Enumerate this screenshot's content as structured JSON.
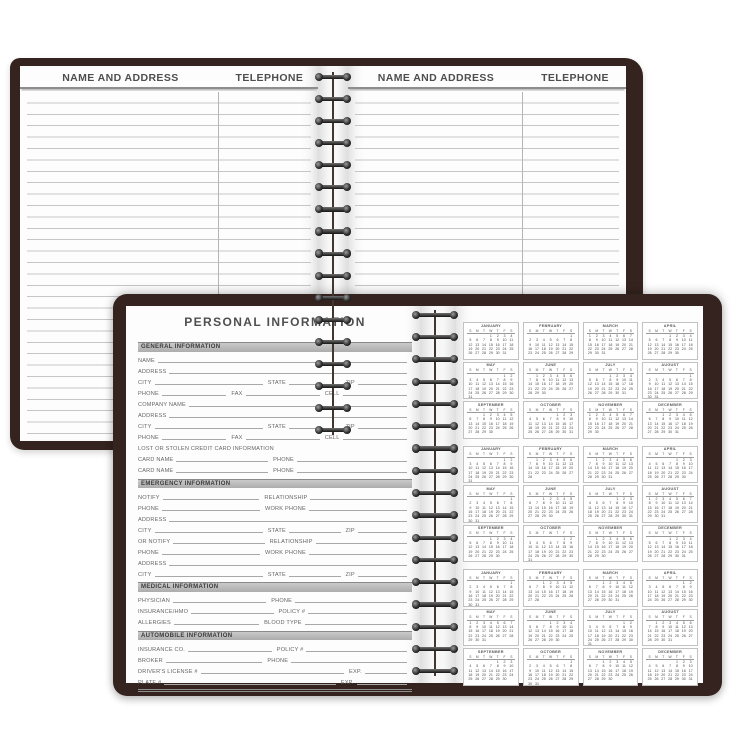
{
  "colors": {
    "cover": "#35231f",
    "page": "#fdfdfd",
    "rule": "#c6c6c6",
    "header-text": "#4e4e4e",
    "bar-text": "#3b3b3b",
    "label": "#666666",
    "line": "#a8a8a8",
    "cal-border": "#c2c2c2",
    "cal-text": "#4a4a4a"
  },
  "back_book": {
    "left_page": {
      "name_address_header": "NAME AND ADDRESS",
      "telephone_header": "TELEPHONE"
    },
    "right_page": {
      "name_address_header": "NAME AND ADDRESS",
      "telephone_header": "TELEPHONE"
    }
  },
  "front_book": {
    "left_page": {
      "title": "PERSONAL INFORMATION",
      "sections": [
        {
          "heading": "GENERAL INFORMATION",
          "rows": [
            [
              {
                "label": "NAME",
                "w": 1
              }
            ],
            [
              {
                "label": "ADDRESS",
                "w": 1
              }
            ],
            [
              {
                "label": "CITY",
                "w": 2.2
              },
              {
                "label": "STATE",
                "w": 1.05
              },
              {
                "label": "ZIP",
                "w": 1
              }
            ],
            [
              {
                "label": "PHONE",
                "w": 1
              },
              {
                "label": "FAX",
                "w": 1.15
              },
              {
                "label": "CELL",
                "w": 1
              }
            ],
            [
              {
                "label": "COMPANY NAME",
                "w": 1
              }
            ],
            [
              {
                "label": "ADDRESS",
                "w": 1
              }
            ],
            [
              {
                "label": "CITY",
                "w": 2.2
              },
              {
                "label": "STATE",
                "w": 1.05
              },
              {
                "label": "ZIP",
                "w": 1
              }
            ],
            [
              {
                "label": "PHONE",
                "w": 1
              },
              {
                "label": "FAX",
                "w": 1.15
              },
              {
                "label": "CELL",
                "w": 1
              }
            ],
            [
              {
                "label": "LOST OR STOLEN CREDIT CARD INFORMATION",
                "w": 0
              }
            ],
            [
              {
                "label": "CARD NAME",
                "w": 1
              },
              {
                "label": "PHONE",
                "w": 1.2
              }
            ],
            [
              {
                "label": "CARD NAME",
                "w": 1
              },
              {
                "label": "PHONE",
                "w": 1.2
              }
            ]
          ]
        },
        {
          "heading": "EMERGENCY INFORMATION",
          "rows": [
            [
              {
                "label": "NOTIFY",
                "w": 1
              },
              {
                "label": "RELATIONSHIP",
                "w": 1
              }
            ],
            [
              {
                "label": "PHONE",
                "w": 1
              },
              {
                "label": "WORK PHONE",
                "w": 1
              }
            ],
            [
              {
                "label": "ADDRESS",
                "w": 1
              }
            ],
            [
              {
                "label": "CITY",
                "w": 2.2
              },
              {
                "label": "STATE",
                "w": 1.05
              },
              {
                "label": "ZIP",
                "w": 1
              }
            ],
            [
              {
                "label": "OR NOTIFY",
                "w": 1
              },
              {
                "label": "RELATIONSHIP",
                "w": 1
              }
            ],
            [
              {
                "label": "PHONE",
                "w": 1
              },
              {
                "label": "WORK PHONE",
                "w": 1
              }
            ],
            [
              {
                "label": "ADDRESS",
                "w": 1
              }
            ],
            [
              {
                "label": "CITY",
                "w": 2.2
              },
              {
                "label": "STATE",
                "w": 1.05
              },
              {
                "label": "ZIP",
                "w": 1
              }
            ]
          ]
        },
        {
          "heading": "MEDICAL INFORMATION",
          "rows": [
            [
              {
                "label": "PHYSICIAN",
                "w": 1
              },
              {
                "label": "PHONE",
                "w": 1.2
              }
            ],
            [
              {
                "label": "INSURANCE/HMO",
                "w": 1
              },
              {
                "label": "POLICY #",
                "w": 1.2
              }
            ],
            [
              {
                "label": "ALLERGIES",
                "w": 1
              },
              {
                "label": "BLOOD TYPE",
                "w": 1.2
              }
            ]
          ]
        },
        {
          "heading": "AUTOMOBILE INFORMATION",
          "rows": [
            [
              {
                "label": "INSURANCE CO.",
                "w": 1
              },
              {
                "label": "POLICY #",
                "w": 1.2
              }
            ],
            [
              {
                "label": "BROKER",
                "w": 1
              },
              {
                "label": "PHONE",
                "w": 1.2
              }
            ],
            [
              {
                "label": "DRIVER'S LICENSE #",
                "w": 3.4
              },
              {
                "label": "EXP.",
                "w": 1
              }
            ],
            [
              {
                "label": "PLATE #",
                "w": 3.4
              },
              {
                "label": "EXP.",
                "w": 1
              }
            ]
          ]
        }
      ]
    },
    "right_page": {
      "day_letters": [
        "S",
        "M",
        "T",
        "W",
        "T",
        "F",
        "S"
      ],
      "year_blocks": [
        {
          "year": 2020,
          "months": [
            {
              "name": "JANUARY",
              "start": 3,
              "days": 31
            },
            {
              "name": "FEBRUARY",
              "start": 6,
              "days": 29
            },
            {
              "name": "MARCH",
              "start": 0,
              "days": 31
            },
            {
              "name": "APRIL",
              "start": 3,
              "days": 30
            },
            {
              "name": "MAY",
              "start": 5,
              "days": 31
            },
            {
              "name": "JUNE",
              "start": 1,
              "days": 30
            },
            {
              "name": "JULY",
              "start": 3,
              "days": 31
            },
            {
              "name": "AUGUST",
              "start": 6,
              "days": 31
            },
            {
              "name": "SEPTEMBER",
              "start": 2,
              "days": 30
            },
            {
              "name": "OCTOBER",
              "start": 4,
              "days": 31
            },
            {
              "name": "NOVEMBER",
              "start": 0,
              "days": 30
            },
            {
              "name": "DECEMBER",
              "start": 2,
              "days": 31
            }
          ]
        },
        {
          "year": 2021,
          "months": [
            {
              "name": "JANUARY",
              "start": 5,
              "days": 31
            },
            {
              "name": "FEBRUARY",
              "start": 1,
              "days": 28
            },
            {
              "name": "MARCH",
              "start": 1,
              "days": 31
            },
            {
              "name": "APRIL",
              "start": 4,
              "days": 30
            },
            {
              "name": "MAY",
              "start": 6,
              "days": 31
            },
            {
              "name": "JUNE",
              "start": 2,
              "days": 30
            },
            {
              "name": "JULY",
              "start": 4,
              "days": 31
            },
            {
              "name": "AUGUST",
              "start": 0,
              "days": 31
            },
            {
              "name": "SEPTEMBER",
              "start": 3,
              "days": 30
            },
            {
              "name": "OCTOBER",
              "start": 5,
              "days": 31
            },
            {
              "name": "NOVEMBER",
              "start": 1,
              "days": 30
            },
            {
              "name": "DECEMBER",
              "start": 3,
              "days": 31
            }
          ]
        },
        {
          "year": 2022,
          "months": [
            {
              "name": "JANUARY",
              "start": 6,
              "days": 31
            },
            {
              "name": "FEBRUARY",
              "start": 2,
              "days": 28
            },
            {
              "name": "MARCH",
              "start": 2,
              "days": 31
            },
            {
              "name": "APRIL",
              "start": 5,
              "days": 30
            },
            {
              "name": "MAY",
              "start": 0,
              "days": 31
            },
            {
              "name": "JUNE",
              "start": 3,
              "days": 30
            },
            {
              "name": "JULY",
              "start": 5,
              "days": 31
            },
            {
              "name": "AUGUST",
              "start": 1,
              "days": 31
            },
            {
              "name": "SEPTEMBER",
              "start": 4,
              "days": 30
            },
            {
              "name": "OCTOBER",
              "start": 6,
              "days": 31
            },
            {
              "name": "NOVEMBER",
              "start": 2,
              "days": 30
            },
            {
              "name": "DECEMBER",
              "start": 4,
              "days": 31
            }
          ]
        }
      ]
    }
  }
}
